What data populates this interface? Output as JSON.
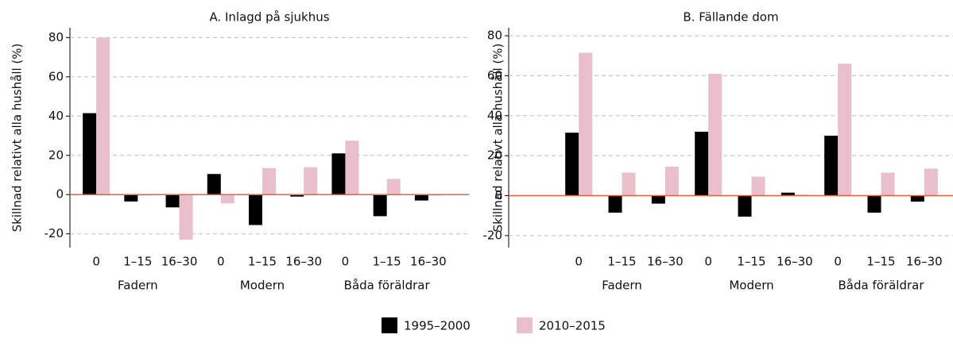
{
  "chart_data": [
    {
      "type": "bar",
      "title": "A. Inlagd på sjukhus",
      "ylabel": "Skillnad relativt alla hushåll (%)",
      "categories": [
        "0",
        "1–15",
        "16–30",
        "0",
        "1–15",
        "16–30",
        "0",
        "1–15",
        "16–30"
      ],
      "groups": [
        "Fadern",
        "Modern",
        "Båda föräldrar"
      ],
      "series": [
        {
          "name": "1995–2000",
          "color": "#000000",
          "values": [
            41.5,
            -3.5,
            -6.5,
            10.5,
            -15.5,
            -1,
            21,
            -11,
            -3
          ]
        },
        {
          "name": "2010–2015",
          "color": "#e8bfcb",
          "values": [
            80,
            -0.5,
            -23,
            -4.5,
            13.5,
            14,
            27.5,
            8,
            -0.5
          ]
        }
      ],
      "ylim": [
        -27,
        85
      ],
      "yticks": [
        -20,
        0,
        20,
        40,
        60,
        80
      ],
      "grid": true
    },
    {
      "type": "bar",
      "title": "B. Fällande dom",
      "ylabel": "Skillnad relativt alla hushåll (%)",
      "categories": [
        "0",
        "1–15",
        "16–30",
        "0",
        "1–15",
        "16–30",
        "0",
        "1–15",
        "16–30"
      ],
      "groups": [
        "Fadern",
        "Modern",
        "Båda föräldrar"
      ],
      "series": [
        {
          "color": "#000000",
          "values": [
            31.5,
            -8.5,
            -4,
            32,
            -10.5,
            1.5,
            30,
            -8.5,
            -3
          ]
        },
        {
          "color": "#e8bfcb",
          "values": [
            71.5,
            11.5,
            14.5,
            61,
            9.5,
            0.5,
            66,
            11.5,
            13.5
          ]
        }
      ],
      "ylim": [
        -26,
        84
      ],
      "yticks": [
        -20,
        0,
        20,
        40,
        60,
        80
      ],
      "grid": true
    }
  ]
}
